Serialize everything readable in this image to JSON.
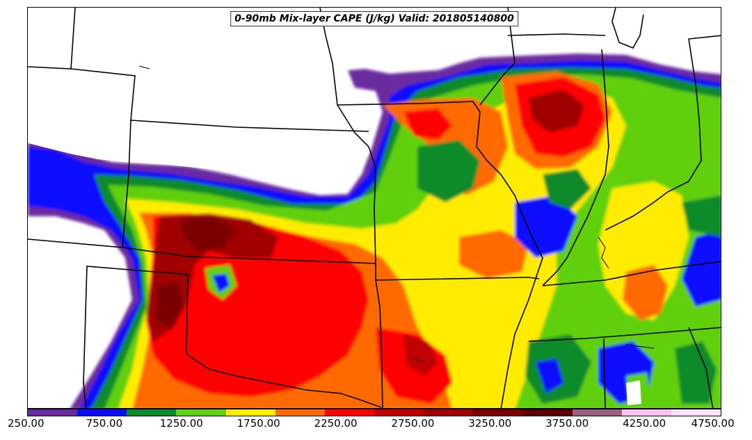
{
  "title": "0-90mb Mix-layer CAPE (J/kg) Valid: 201805140800",
  "colorbar": {
    "colors": [
      "#6a2aa0",
      "#0a0aff",
      "#0a8a2a",
      "#60d010",
      "#ffec00",
      "#ff6a00",
      "#ff0000",
      "#c00000",
      "#a00000",
      "#7a0000",
      "#5a0000",
      "#9a5f80",
      "#f6c3f2",
      "#ffe0ff"
    ],
    "tick_labels": [
      "250.00",
      "750.00",
      "1250.00",
      "1750.00",
      "2250.00",
      "2750.00",
      "3250.00",
      "3750.00",
      "4250.00",
      "4750.00"
    ]
  }
}
